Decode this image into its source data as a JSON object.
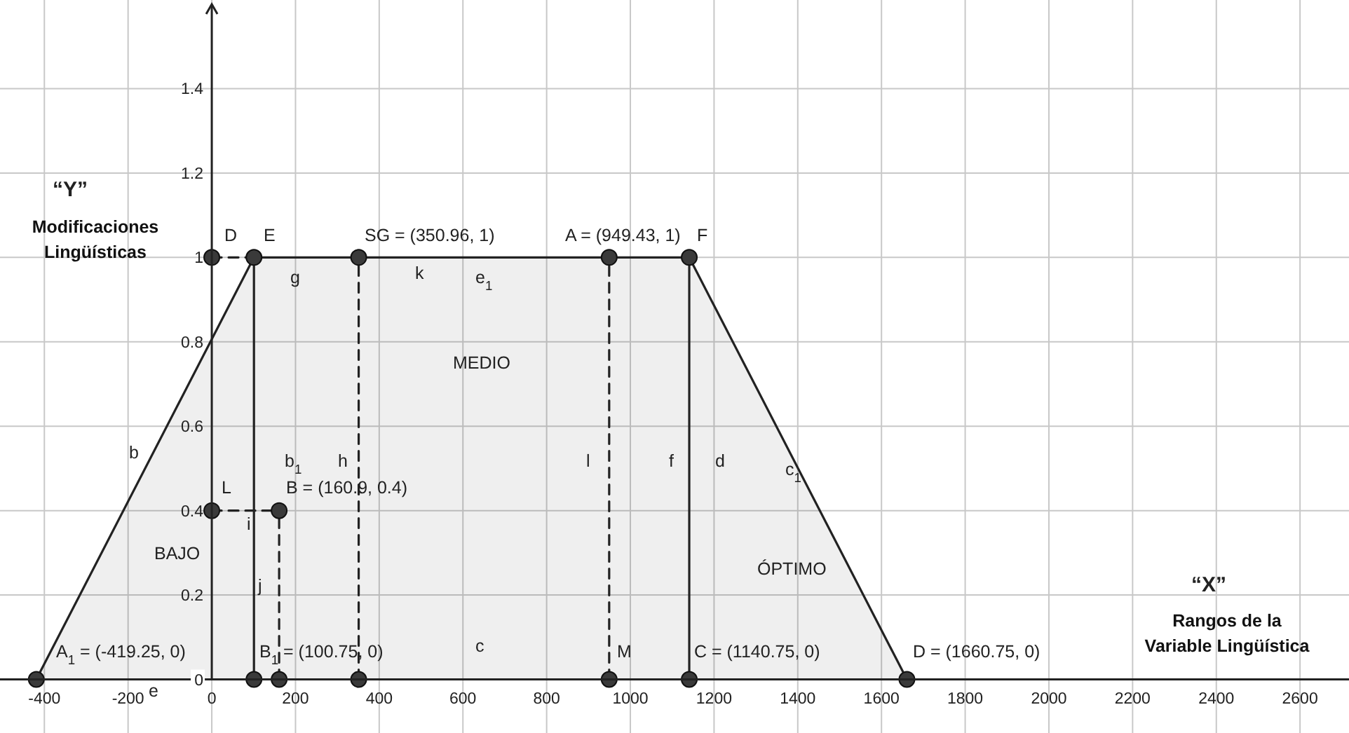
{
  "chart_data": {
    "type": "area",
    "ylabel": "Modificaciones Lingüísticas",
    "xlabel": "Rangos de la Variable Lingüística",
    "xlim": [
      -506,
      2717
    ],
    "ylim": [
      -0.127,
      1.61
    ],
    "xticks": [
      -400,
      -200,
      0,
      200,
      400,
      600,
      800,
      1000,
      1200,
      1400,
      1600,
      1800,
      2000,
      2200,
      2400,
      2600
    ],
    "yticks": [
      0,
      0.2,
      0.4,
      0.6,
      0.8,
      {
        "value": 1,
        "label": "1"
      },
      1.2,
      1.4
    ],
    "grid": true,
    "series": [
      {
        "color": "#222222",
        "x": [
          -419.25,
          100.75,
          1140.75,
          1660.75
        ],
        "values": [
          0,
          1,
          1,
          0
        ]
      },
      {
        "type": "line",
        "color": "#222222",
        "line_style": "solid",
        "x": [
          100.75,
          100.75
        ],
        "values": [
          0,
          1
        ]
      },
      {
        "type": "line",
        "color": "#222222",
        "line_style": "solid",
        "x": [
          1140.75,
          1140.75
        ],
        "values": [
          0,
          1
        ]
      },
      {
        "type": "line",
        "color": "#222222",
        "line_style": "dashed",
        "x": [
          350.96,
          350.96
        ],
        "values": [
          0,
          1
        ]
      },
      {
        "type": "line",
        "color": "#222222",
        "line_style": "dashed",
        "x": [
          949.43,
          949.43
        ],
        "values": [
          0,
          1
        ]
      },
      {
        "type": "line",
        "color": "#222222",
        "line_style": "dashed",
        "x": [
          160.9,
          160.9
        ],
        "values": [
          0,
          0.4
        ]
      },
      {
        "type": "line",
        "color": "#222222",
        "line_style": "dashed",
        "x": [
          0,
          160.9
        ],
        "values": [
          0.4,
          0.4
        ]
      },
      {
        "type": "line",
        "color": "#222222",
        "line_style": "dashed",
        "x": [
          0,
          100.75
        ],
        "values": [
          1,
          1
        ]
      },
      {
        "type": "scatter",
        "color": "#3a3a3a",
        "marker": "circle",
        "x": [
          0,
          100.75,
          350.96,
          949.43,
          1140.75,
          0,
          160.9,
          -419.25,
          100.75,
          160.9,
          350.96,
          949.43,
          1140.75,
          1660.75
        ],
        "values": [
          1,
          1,
          1,
          1,
          1,
          0.4,
          0.4,
          0,
          0,
          0,
          0,
          0,
          0,
          0
        ]
      }
    ],
    "annotations": [
      "“Y”",
      "“X”",
      "D",
      "E",
      "SG = (350.96, 1)",
      "A = (949.43, 1)",
      "F",
      "g",
      "k",
      "e$_{1}$",
      "MEDIO",
      "b",
      "b$_{1}$",
      "h",
      "l",
      "f",
      "d",
      "c$_{1}$",
      "L",
      "B = (160.9, 0.4)",
      "i",
      "BAJO",
      "j",
      "ÓPTIMO",
      "A$_{1}$ = (-419.25, 0)",
      "B$_{1}$ = (100.75, 0)",
      "c",
      "M",
      "C = (1140.75, 0)",
      "D = (1660.75, 0)",
      "e"
    ]
  }
}
